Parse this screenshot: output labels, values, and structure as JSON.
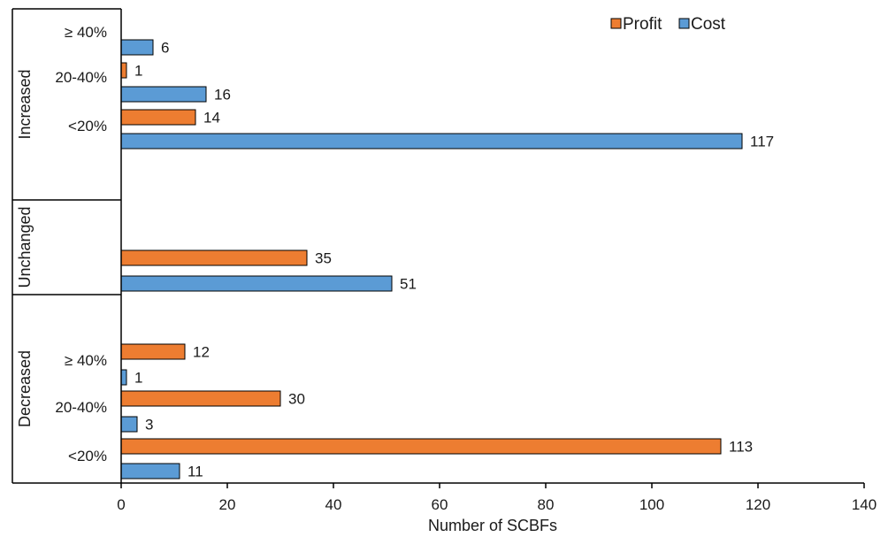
{
  "chart_data": {
    "type": "bar",
    "orientation": "horizontal",
    "xlabel": "Number of SCBFs",
    "xlim": [
      0,
      140
    ],
    "xticks": [
      0,
      20,
      40,
      60,
      80,
      100,
      120,
      140
    ],
    "grid": false,
    "legend_position": "top-right",
    "series": [
      {
        "name": "Profit",
        "color": "#ED7D31"
      },
      {
        "name": "Cost",
        "color": "#5B9BD5"
      }
    ],
    "groups": [
      {
        "label": "Increased",
        "categories": [
          {
            "label": "≥ 40%",
            "values": {
              "Cost": 6
            }
          },
          {
            "label": "20-40%",
            "values": {
              "Profit": 1,
              "Cost": 16
            }
          },
          {
            "label": "<20%",
            "values": {
              "Profit": 14,
              "Cost": 117
            }
          }
        ]
      },
      {
        "label": "Unchanged",
        "categories": [
          {
            "label": "",
            "values": {
              "Profit": 35,
              "Cost": 51
            }
          }
        ]
      },
      {
        "label": "Decreased",
        "categories": [
          {
            "label": "≥ 40%",
            "values": {
              "Profit": 12,
              "Cost": 1
            }
          },
          {
            "label": "20-40%",
            "values": {
              "Profit": 30,
              "Cost": 3
            }
          },
          {
            "label": "<20%",
            "values": {
              "Profit": 113,
              "Cost": 11
            }
          }
        ]
      }
    ]
  }
}
